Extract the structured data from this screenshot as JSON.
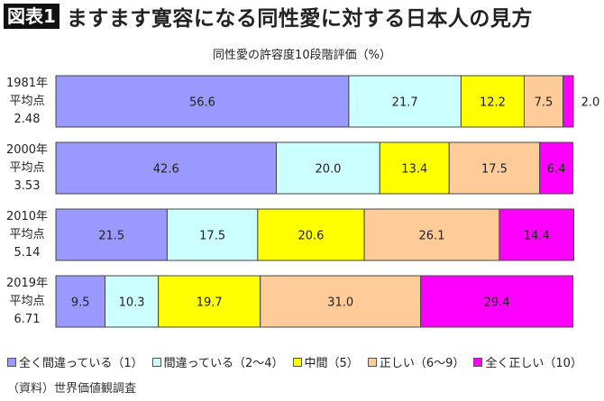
{
  "header": {
    "badge": "図表1",
    "title": "ますます寛容になる同性愛に対する日本人の見方"
  },
  "chart_data": {
    "type": "bar",
    "orientation": "horizontal",
    "stacked": true,
    "title": "同性愛の許容度10段階評価（%）",
    "categories": [
      {
        "year": "1981年",
        "label": "平均点",
        "mean": "2.48"
      },
      {
        "year": "2000年",
        "label": "平均点",
        "mean": "3.53"
      },
      {
        "year": "2010年",
        "label": "平均点",
        "mean": "5.14"
      },
      {
        "year": "2019年",
        "label": "平均点",
        "mean": "6.71"
      }
    ],
    "series": [
      {
        "name": "全く間違っている（1）",
        "color": "#9999ff",
        "values": [
          56.6,
          42.6,
          21.5,
          9.5
        ]
      },
      {
        "name": "間違っている（2～4）",
        "color": "#ccffff",
        "values": [
          21.7,
          20.0,
          17.5,
          10.3
        ]
      },
      {
        "name": "中間（5）",
        "color": "#ffff00",
        "values": [
          12.2,
          13.4,
          20.6,
          19.7
        ]
      },
      {
        "name": "正しい（6～9）",
        "color": "#ffcc99",
        "values": [
          7.5,
          17.5,
          26.1,
          31.0
        ]
      },
      {
        "name": "全く正しい（10）",
        "color": "#ff00ff",
        "values": [
          2.0,
          6.4,
          14.4,
          29.4
        ]
      }
    ],
    "xlim": [
      0,
      100
    ],
    "grid": false,
    "legend": "bottom",
    "data_labels": true
  },
  "source": "（資料）世界価値観調査"
}
